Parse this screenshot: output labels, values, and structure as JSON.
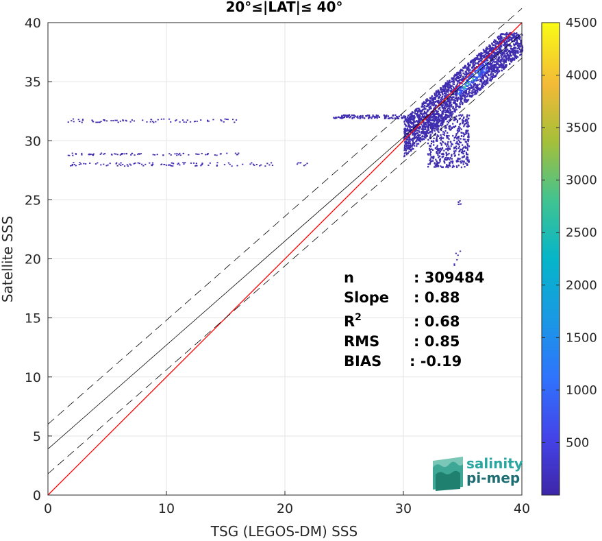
{
  "chart_data": {
    "type": "heatmap",
    "title": "20°≤|LAT|≤ 40°",
    "xlabel": "TSG (LEGOS-DM) SSS",
    "ylabel": "Satellite SSS",
    "xlim": [
      0,
      40
    ],
    "ylim": [
      0,
      40
    ],
    "xticks": [
      "0",
      "10",
      "20",
      "30",
      "40"
    ],
    "yticks": [
      "0",
      "5",
      "10",
      "15",
      "20",
      "25",
      "30",
      "35",
      "40"
    ],
    "grid": true,
    "colorbar": {
      "range": [
        0,
        4500
      ],
      "ticks": [
        "500",
        "1000",
        "1500",
        "2000",
        "2500",
        "3000",
        "3500",
        "4000",
        "4500"
      ],
      "colormap": "parula"
    },
    "lines": [
      {
        "type": "identity",
        "color": "#ff0000",
        "points": [
          [
            0,
            0
          ],
          [
            40,
            40
          ]
        ]
      },
      {
        "type": "regression",
        "color": "#000000",
        "points": [
          [
            0,
            3.9
          ],
          [
            40,
            39.1
          ]
        ]
      },
      {
        "type": "regression-upper",
        "color": "#000000",
        "points": [
          [
            0,
            6.0
          ],
          [
            40,
            41.2
          ]
        ]
      },
      {
        "type": "regression-lower",
        "color": "#000000",
        "points": [
          [
            0,
            1.8
          ],
          [
            40,
            37.0
          ]
        ]
      }
    ],
    "clusters": [
      {
        "x": [
          30,
          40
        ],
        "y": [
          27.8,
          39.2
        ],
        "density": "high"
      },
      {
        "x": [
          1.5,
          16
        ],
        "y": [
          31.6,
          31.9
        ],
        "density": "low"
      },
      {
        "x": [
          1.5,
          16.5
        ],
        "y": [
          28.8,
          29.0
        ],
        "density": "low"
      },
      {
        "x": [
          1.5,
          22
        ],
        "y": [
          27.9,
          28.2
        ],
        "density": "low"
      },
      {
        "x": [
          34.5,
          35
        ],
        "y": [
          24.6,
          25.0
        ],
        "density": "low"
      },
      {
        "x": [
          34.2,
          34.8
        ],
        "y": [
          19.4,
          21.0
        ],
        "density": "low"
      }
    ],
    "stats": [
      {
        "label": "n",
        "value": ": 309484"
      },
      {
        "label": "Slope",
        "value": ": 0.88"
      },
      {
        "label": "R",
        "sup": "2",
        "value": ": 0.68"
      },
      {
        "label": "RMS",
        "value": ": 0.85"
      },
      {
        "label": "BIAS",
        "value": ": -0.19"
      }
    ]
  },
  "logo": {
    "line1": "salinity",
    "line2": "pi-mep",
    "color1": "#2aa6a0",
    "color2": "#1d6d73"
  }
}
